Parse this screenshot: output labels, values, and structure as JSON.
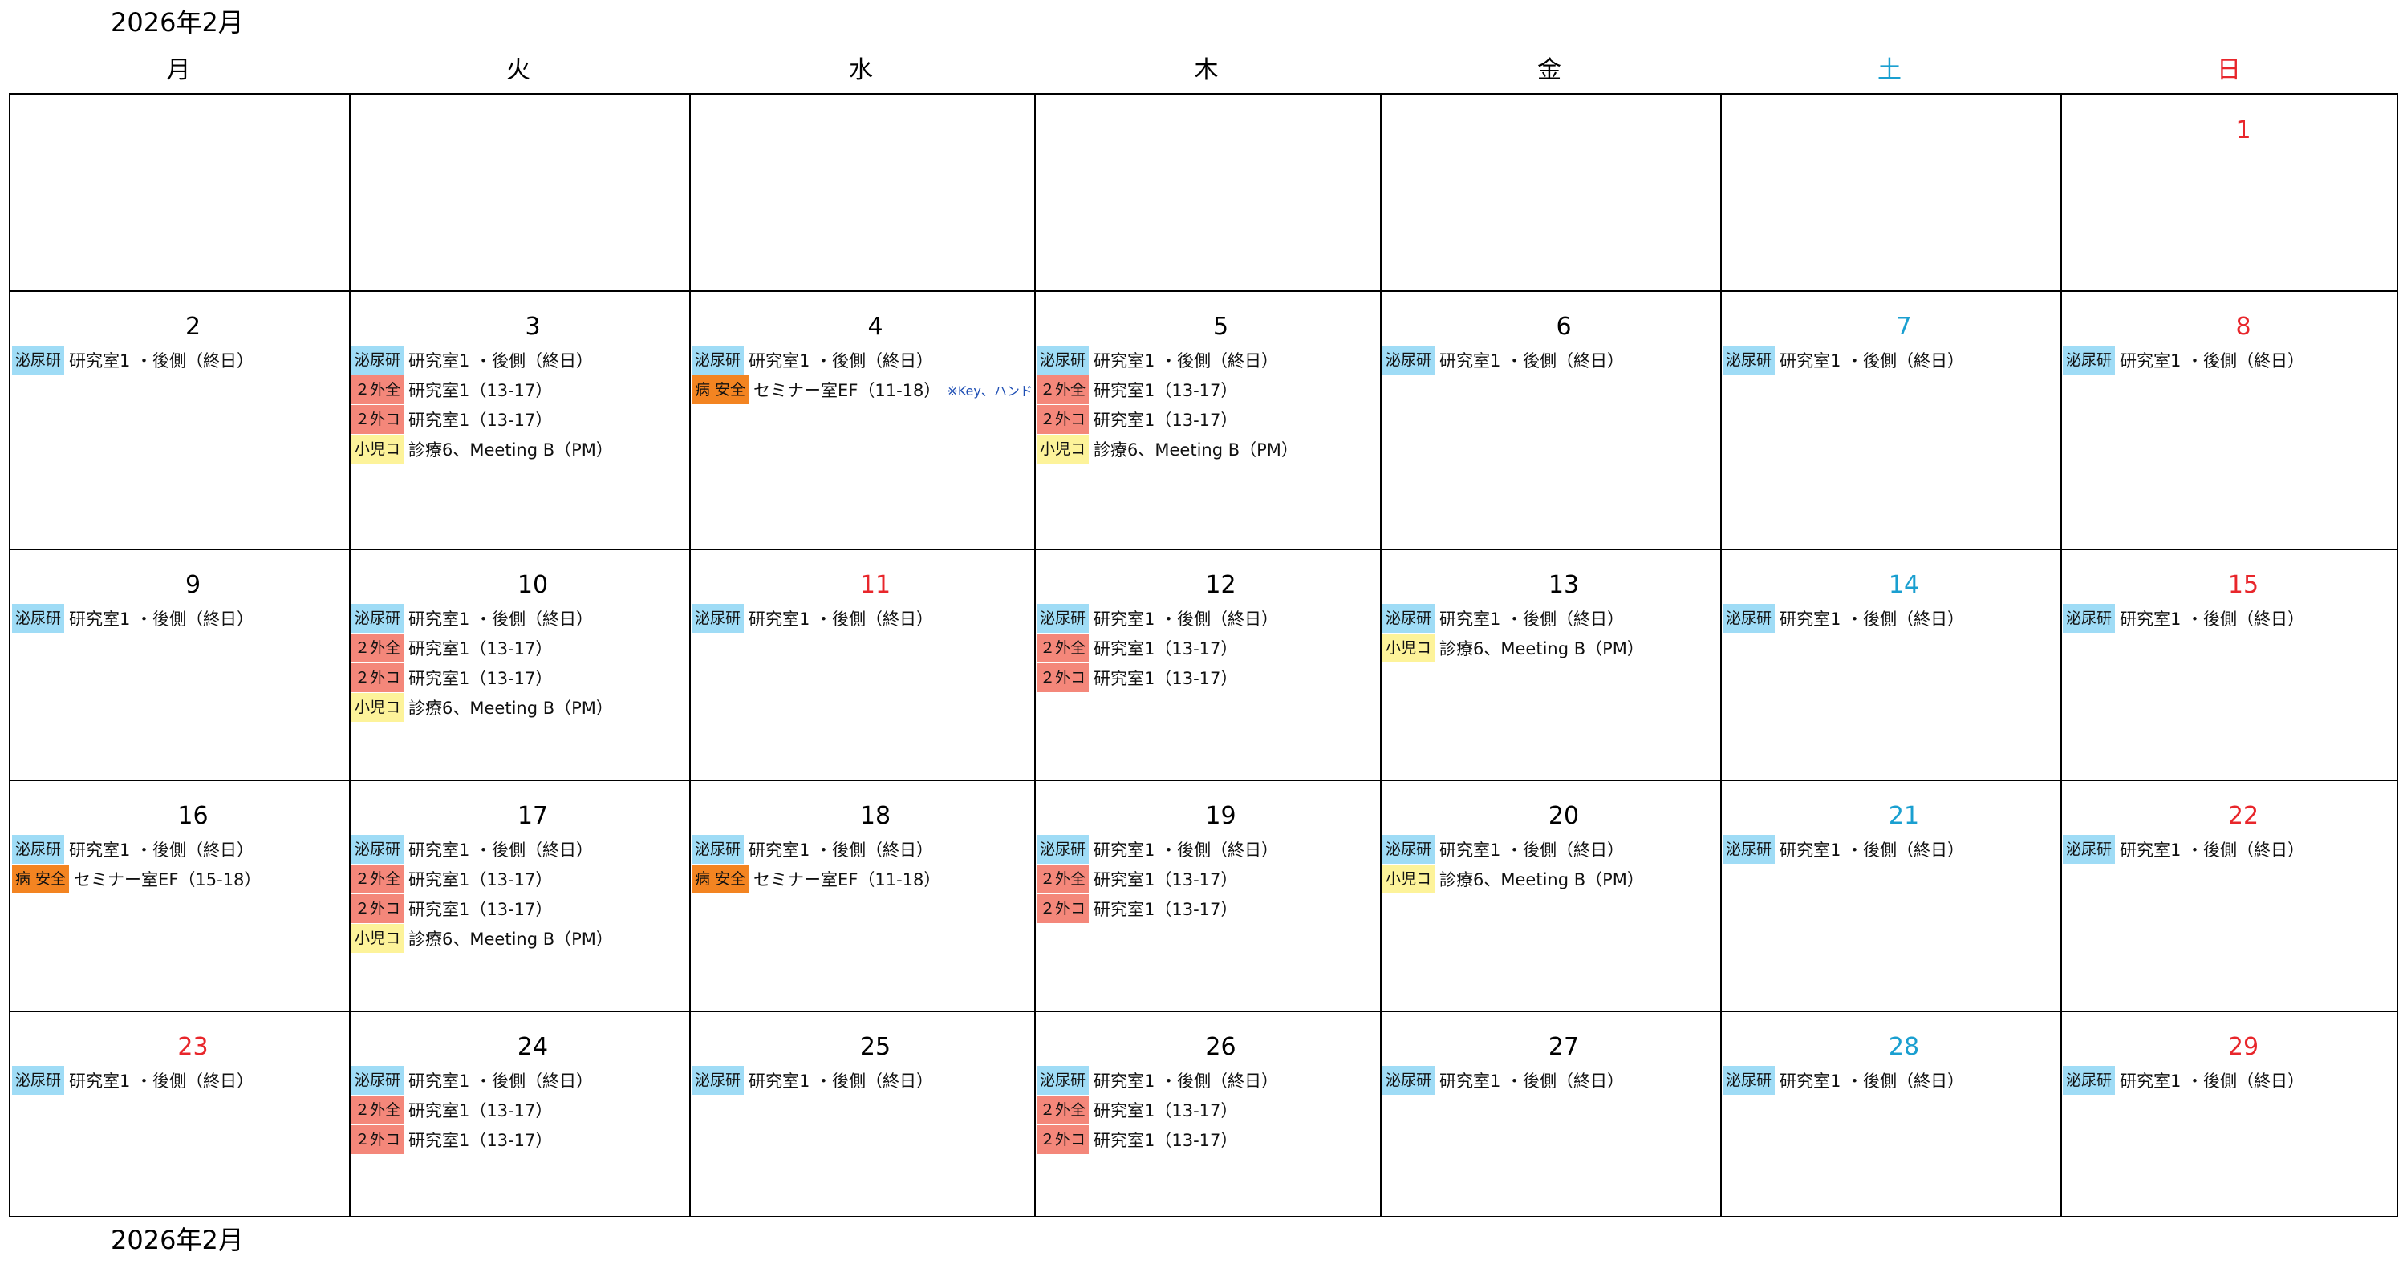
{
  "header": {
    "month_title": "2026年2月"
  },
  "footer": {
    "month_title": "2026年2月"
  },
  "weekdays": [
    {
      "label": "月",
      "kind": "weekday"
    },
    {
      "label": "火",
      "kind": "weekday"
    },
    {
      "label": "水",
      "kind": "weekday"
    },
    {
      "label": "木",
      "kind": "weekday"
    },
    {
      "label": "金",
      "kind": "weekday"
    },
    {
      "label": "土",
      "kind": "sat"
    },
    {
      "label": "日",
      "kind": "sun"
    }
  ],
  "colors": {
    "blue_tag": "#9fdcf6",
    "salmon_tag": "#f4877a",
    "yellow_tag": "#fdf39a",
    "orange_tag": "#f38421",
    "saturday": "#1a9fd0",
    "sunday": "#e8262b"
  },
  "weeks": [
    [
      {
        "day": "",
        "events": []
      },
      {
        "day": "",
        "events": []
      },
      {
        "day": "",
        "events": []
      },
      {
        "day": "",
        "events": []
      },
      {
        "day": "",
        "events": []
      },
      {
        "day": "",
        "events": []
      },
      {
        "day": "1",
        "color": "sun",
        "events": []
      }
    ],
    [
      {
        "day": "2",
        "events": [
          {
            "tag": "泌尿研",
            "color": "blue",
            "text": "研究室1 ・後側（終日）"
          }
        ]
      },
      {
        "day": "3",
        "events": [
          {
            "tag": "泌尿研",
            "color": "blue",
            "text": "研究室1 ・後側（終日）"
          },
          {
            "tag": "２外全",
            "color": "salmon",
            "text": "研究室1（13-17）"
          },
          {
            "tag": "２外コ",
            "color": "salmon",
            "text": "研究室1（13-17）"
          },
          {
            "tag": "小児コ",
            "color": "yellow",
            "text": "診療6、Meeting B（PM）"
          }
        ]
      },
      {
        "day": "4",
        "events": [
          {
            "tag": "泌尿研",
            "color": "blue",
            "text": "研究室1 ・後側（終日）"
          },
          {
            "tag": "病 安全",
            "color": "orange",
            "text": "セミナー室EF（11-18）",
            "note": "※Key、ハンドル"
          }
        ]
      },
      {
        "day": "5",
        "events": [
          {
            "tag": "泌尿研",
            "color": "blue",
            "text": "研究室1 ・後側（終日）"
          },
          {
            "tag": "２外全",
            "color": "salmon",
            "text": "研究室1（13-17）"
          },
          {
            "tag": "２外コ",
            "color": "salmon",
            "text": "研究室1（13-17）"
          },
          {
            "tag": "小児コ",
            "color": "yellow",
            "text": "診療6、Meeting B（PM）"
          }
        ]
      },
      {
        "day": "6",
        "events": [
          {
            "tag": "泌尿研",
            "color": "blue",
            "text": "研究室1 ・後側（終日）"
          }
        ]
      },
      {
        "day": "7",
        "color": "sat",
        "events": [
          {
            "tag": "泌尿研",
            "color": "blue",
            "text": "研究室1 ・後側（終日）"
          }
        ]
      },
      {
        "day": "8",
        "color": "sun",
        "events": [
          {
            "tag": "泌尿研",
            "color": "blue",
            "text": "研究室1 ・後側（終日）"
          }
        ]
      }
    ],
    [
      {
        "day": "9",
        "events": [
          {
            "tag": "泌尿研",
            "color": "blue",
            "text": "研究室1 ・後側（終日）"
          }
        ]
      },
      {
        "day": "10",
        "events": [
          {
            "tag": "泌尿研",
            "color": "blue",
            "text": "研究室1 ・後側（終日）"
          },
          {
            "tag": "２外全",
            "color": "salmon",
            "text": "研究室1（13-17）"
          },
          {
            "tag": "２外コ",
            "color": "salmon",
            "text": "研究室1（13-17）"
          },
          {
            "tag": "小児コ",
            "color": "yellow",
            "text": "診療6、Meeting B（PM）"
          }
        ]
      },
      {
        "day": "11",
        "color": "sun",
        "events": [
          {
            "tag": "泌尿研",
            "color": "blue",
            "text": "研究室1 ・後側（終日）"
          }
        ]
      },
      {
        "day": "12",
        "events": [
          {
            "tag": "泌尿研",
            "color": "blue",
            "text": "研究室1 ・後側（終日）"
          },
          {
            "tag": "２外全",
            "color": "salmon",
            "text": "研究室1（13-17）"
          },
          {
            "tag": "２外コ",
            "color": "salmon",
            "text": "研究室1（13-17）"
          }
        ]
      },
      {
        "day": "13",
        "events": [
          {
            "tag": "泌尿研",
            "color": "blue",
            "text": "研究室1 ・後側（終日）"
          },
          {
            "tag": "小児コ",
            "color": "yellow",
            "text": "診療6、Meeting B（PM）"
          }
        ]
      },
      {
        "day": "14",
        "color": "sat",
        "events": [
          {
            "tag": "泌尿研",
            "color": "blue",
            "text": "研究室1 ・後側（終日）"
          }
        ]
      },
      {
        "day": "15",
        "color": "sun",
        "events": [
          {
            "tag": "泌尿研",
            "color": "blue",
            "text": "研究室1 ・後側（終日）"
          }
        ]
      }
    ],
    [
      {
        "day": "16",
        "events": [
          {
            "tag": "泌尿研",
            "color": "blue",
            "text": "研究室1 ・後側（終日）"
          },
          {
            "tag": "病 安全",
            "color": "orange",
            "text": "セミナー室EF（15-18）"
          }
        ]
      },
      {
        "day": "17",
        "events": [
          {
            "tag": "泌尿研",
            "color": "blue",
            "text": "研究室1 ・後側（終日）"
          },
          {
            "tag": "２外全",
            "color": "salmon",
            "text": "研究室1（13-17）"
          },
          {
            "tag": "２外コ",
            "color": "salmon",
            "text": "研究室1（13-17）"
          },
          {
            "tag": "小児コ",
            "color": "yellow",
            "text": "診療6、Meeting B（PM）"
          }
        ]
      },
      {
        "day": "18",
        "events": [
          {
            "tag": "泌尿研",
            "color": "blue",
            "text": "研究室1 ・後側（終日）"
          },
          {
            "tag": "病 安全",
            "color": "orange",
            "text": "セミナー室EF（11-18）"
          }
        ]
      },
      {
        "day": "19",
        "events": [
          {
            "tag": "泌尿研",
            "color": "blue",
            "text": "研究室1 ・後側（終日）"
          },
          {
            "tag": "２外全",
            "color": "salmon",
            "text": "研究室1（13-17）"
          },
          {
            "tag": "２外コ",
            "color": "salmon",
            "text": "研究室1（13-17）"
          }
        ]
      },
      {
        "day": "20",
        "events": [
          {
            "tag": "泌尿研",
            "color": "blue",
            "text": "研究室1 ・後側（終日）"
          },
          {
            "tag": "小児コ",
            "color": "yellow",
            "text": "診療6、Meeting B（PM）"
          }
        ]
      },
      {
        "day": "21",
        "color": "sat",
        "events": [
          {
            "tag": "泌尿研",
            "color": "blue",
            "text": "研究室1 ・後側（終日）"
          }
        ]
      },
      {
        "day": "22",
        "color": "sun",
        "events": [
          {
            "tag": "泌尿研",
            "color": "blue",
            "text": "研究室1 ・後側（終日）"
          }
        ]
      }
    ],
    [
      {
        "day": "23",
        "color": "sun",
        "events": [
          {
            "tag": "泌尿研",
            "color": "blue",
            "text": "研究室1 ・後側（終日）"
          }
        ]
      },
      {
        "day": "24",
        "events": [
          {
            "tag": "泌尿研",
            "color": "blue",
            "text": "研究室1 ・後側（終日）"
          },
          {
            "tag": "２外全",
            "color": "salmon",
            "text": "研究室1（13-17）"
          },
          {
            "tag": "２外コ",
            "color": "salmon",
            "text": "研究室1（13-17）"
          }
        ]
      },
      {
        "day": "25",
        "events": [
          {
            "tag": "泌尿研",
            "color": "blue",
            "text": "研究室1 ・後側（終日）"
          }
        ]
      },
      {
        "day": "26",
        "events": [
          {
            "tag": "泌尿研",
            "color": "blue",
            "text": "研究室1 ・後側（終日）"
          },
          {
            "tag": "２外全",
            "color": "salmon",
            "text": "研究室1（13-17）"
          },
          {
            "tag": "２外コ",
            "color": "salmon",
            "text": "研究室1（13-17）"
          }
        ]
      },
      {
        "day": "27",
        "events": [
          {
            "tag": "泌尿研",
            "color": "blue",
            "text": "研究室1 ・後側（終日）"
          }
        ]
      },
      {
        "day": "28",
        "color": "sat",
        "events": [
          {
            "tag": "泌尿研",
            "color": "blue",
            "text": "研究室1 ・後側（終日）"
          }
        ]
      },
      {
        "day": "29",
        "color": "sun",
        "events": [
          {
            "tag": "泌尿研",
            "color": "blue",
            "text": "研究室1 ・後側（終日）"
          }
        ]
      }
    ]
  ]
}
